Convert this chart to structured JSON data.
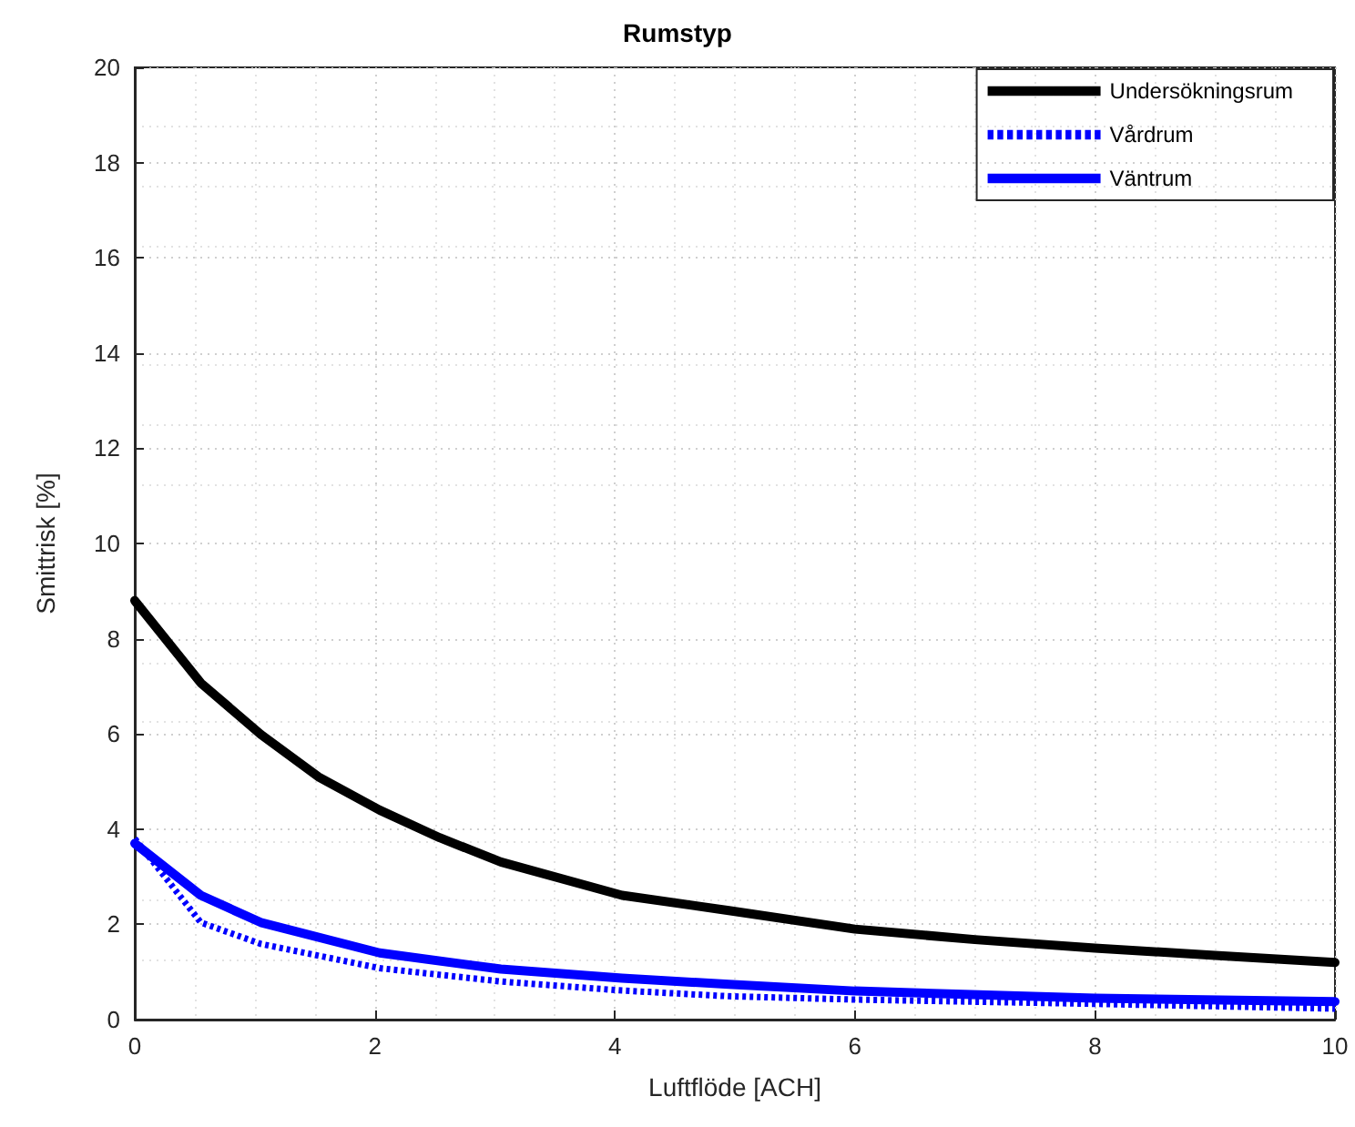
{
  "chart_data": {
    "type": "line",
    "title": "Rumstyp",
    "xlabel": "Luftflöde [ACH]",
    "ylabel": "Smittrisk [%]",
    "xlim": [
      0,
      10
    ],
    "xticks": [
      0,
      2,
      4,
      6,
      8,
      10
    ],
    "ylim": [
      0,
      20
    ],
    "yticks": [
      0,
      2,
      4,
      6,
      8,
      10,
      12,
      14,
      16,
      18,
      20
    ],
    "grid": true,
    "legend": "top right",
    "marker": "none",
    "series": [
      {
        "name": "Undersökningsrum",
        "color": "#000000",
        "line_style": "solid",
        "x": [
          0,
          0.55,
          1.05,
          1.53,
          2.04,
          2.54,
          3.05,
          4.06,
          4.95,
          6,
          7,
          8,
          9,
          10
        ],
        "values": [
          8.8,
          7.07,
          5.99,
          5.1,
          4.4,
          3.82,
          3.31,
          2.61,
          2.29,
          1.9,
          1.68,
          1.5,
          1.35,
          1.2
        ]
      },
      {
        "name": "Vårdrum",
        "color": "#0000ff",
        "line_style": "dotted",
        "x": [
          0,
          0.55,
          1.05,
          2.04,
          3.05,
          4.06,
          4.95,
          6,
          8,
          10
        ],
        "values": [
          3.8,
          2.04,
          1.59,
          1.08,
          0.8,
          0.61,
          0.49,
          0.42,
          0.33,
          0.23
        ]
      },
      {
        "name": "Väntrum",
        "color": "#0000ff",
        "line_style": "solid",
        "x": [
          0,
          0.55,
          1.05,
          2.04,
          3.05,
          4.06,
          4.95,
          6,
          8,
          10
        ],
        "values": [
          3.7,
          2.61,
          2.04,
          1.4,
          1.06,
          0.87,
          0.74,
          0.6,
          0.45,
          0.38
        ]
      }
    ]
  }
}
